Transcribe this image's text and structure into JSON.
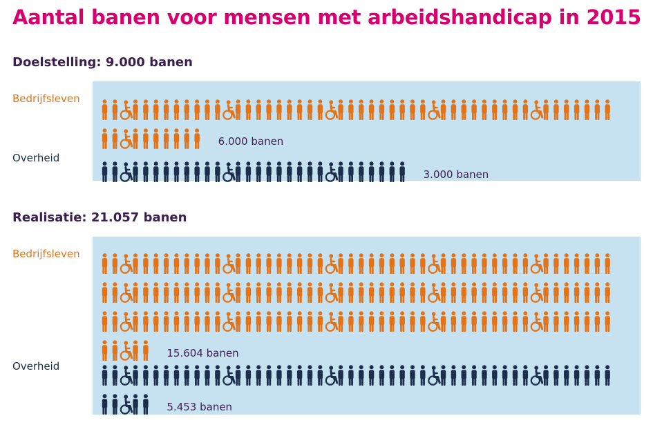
{
  "title": "Aantal banen voor mensen met arbeidshandicap in 2015",
  "colors": {
    "bedrijfsleven": "#e1741b",
    "overheid": "#1c2f4a",
    "panel": "#c6e2f1",
    "title": "#d6006f"
  },
  "chart_data": {
    "type": "pictogram",
    "sections": [
      {
        "title": "Doelstelling: 9.000 banen",
        "series": [
          {
            "name": "Bedrijfsleven",
            "value": 6000,
            "value_label": "6.000 banen",
            "icon_rows": [
              50,
              10
            ]
          },
          {
            "name": "Overheid",
            "value": 3000,
            "value_label": "3.000 banen",
            "icon_rows": [
              30
            ]
          }
        ]
      },
      {
        "title": "Realisatie: 21.057 banen",
        "series": [
          {
            "name": "Bedrijfsleven",
            "value": 15604,
            "value_label": "15.604 banen",
            "icon_rows": [
              50,
              50,
              50,
              5
            ]
          },
          {
            "name": "Overheid",
            "value": 5453,
            "value_label": "5.453 banen",
            "icon_rows": [
              50,
              5
            ]
          }
        ]
      }
    ]
  }
}
